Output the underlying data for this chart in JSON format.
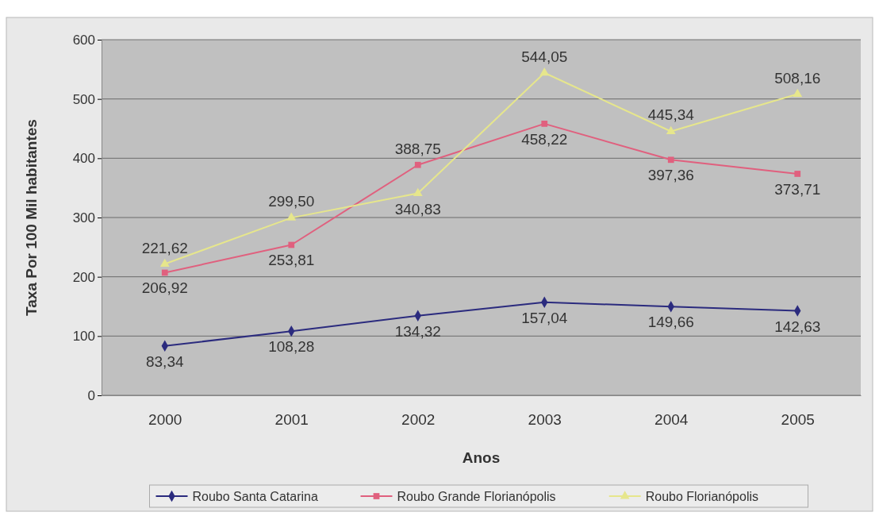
{
  "chart_data": {
    "type": "line",
    "xlabel": "Anos",
    "ylabel": "Taxa Por 100 Mil habitantes",
    "categories": [
      "2000",
      "2001",
      "2002",
      "2003",
      "2004",
      "2005"
    ],
    "series": [
      {
        "name": "Roubo Santa Catarina",
        "color": "#2b2b7e",
        "marker": "diamond",
        "values": [
          83.34,
          108.28,
          134.32,
          157.04,
          149.66,
          142.63
        ],
        "value_labels": [
          "83,34",
          "108,28",
          "134,32",
          "157,04",
          "149,66",
          "142,63"
        ]
      },
      {
        "name": "Roubo Grande Florianópolis",
        "color": "#e0607e",
        "marker": "square",
        "values": [
          206.92,
          253.81,
          388.75,
          458.22,
          397.36,
          373.71
        ],
        "value_labels": [
          "206,92",
          "253,81",
          "388,75",
          "458,22",
          "397,36",
          "373,71"
        ]
      },
      {
        "name": "Roubo Florianópolis",
        "color": "#e6e68c",
        "marker": "triangle",
        "values": [
          221.62,
          299.5,
          340.83,
          544.05,
          445.34,
          508.16
        ],
        "value_labels": [
          "221,62",
          "299,50",
          "340,83",
          "544,05",
          "445,34",
          "508,16"
        ]
      }
    ],
    "ylim": [
      0,
      600
    ],
    "yticks": [
      0,
      100,
      200,
      300,
      400,
      500,
      600
    ],
    "grid": "y",
    "legend": "bottom"
  }
}
